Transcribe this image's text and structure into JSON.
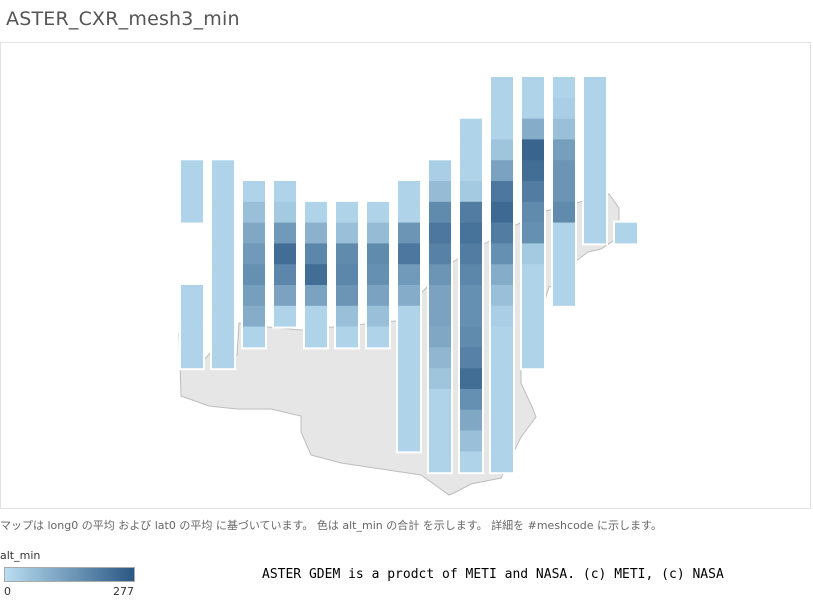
{
  "title": "ASTER_CXR_mesh3_min",
  "caption": "マップは long0 の平均 および lat0 の平均 に基づいています。 色は alt_min の合計 を示します。 詳細を #meshcode に示します。",
  "legend": {
    "title": "alt_min",
    "min_label": "0",
    "max_label": "277"
  },
  "attribution": "ASTER GDEM is a prodct of METI and NASA. (c) METI, (c) NASA",
  "colors": {
    "low": "#b9ddf1",
    "high": "#2a5783",
    "land": "#e6e6e6",
    "coast": "#bdbdbd"
  },
  "chart_data": {
    "type": "heatmap",
    "color_field": "alt_min",
    "color_range": [
      0,
      277
    ],
    "columns": [
      {
        "index": 0,
        "start_row": 4,
        "values": [
          20,
          20,
          20,
          null,
          null,
          null,
          20,
          20,
          20,
          20
        ]
      },
      {
        "index": 1,
        "start_row": 4,
        "values": [
          20,
          20,
          20,
          20,
          20,
          20,
          20,
          20,
          20,
          20
        ]
      },
      {
        "index": 2,
        "start_row": 5,
        "values": [
          20,
          60,
          110,
          140,
          160,
          130,
          100,
          20
        ]
      },
      {
        "index": 3,
        "start_row": 5,
        "values": [
          20,
          40,
          140,
          230,
          180,
          120,
          20
        ]
      },
      {
        "index": 4,
        "start_row": 6,
        "values": [
          20,
          90,
          180,
          230,
          120,
          20,
          20
        ]
      },
      {
        "index": 5,
        "start_row": 6,
        "values": [
          20,
          60,
          170,
          180,
          150,
          60,
          20
        ]
      },
      {
        "index": 6,
        "start_row": 6,
        "values": [
          20,
          70,
          170,
          160,
          120,
          60,
          20
        ]
      },
      {
        "index": 7,
        "start_row": 5,
        "values": [
          20,
          20,
          150,
          210,
          140,
          100,
          20,
          20,
          20,
          20,
          20,
          20,
          20
        ]
      },
      {
        "index": 8,
        "start_row": 4,
        "values": [
          30,
          70,
          170,
          210,
          190,
          150,
          120,
          120,
          110,
          80,
          50,
          20,
          20,
          20,
          20
        ]
      },
      {
        "index": 9,
        "start_row": 2,
        "values": [
          20,
          20,
          20,
          40,
          200,
          220,
          200,
          180,
          160,
          160,
          170,
          190,
          230,
          160,
          110,
          60,
          20
        ]
      },
      {
        "index": 10,
        "start_row": 0,
        "values": [
          20,
          20,
          20,
          50,
          120,
          210,
          240,
          200,
          160,
          100,
          60,
          30,
          20,
          20,
          20,
          20,
          20,
          20,
          20
        ]
      },
      {
        "index": 11,
        "start_row": 0,
        "values": [
          20,
          20,
          100,
          250,
          230,
          200,
          170,
          160,
          40,
          20,
          20,
          20,
          20,
          20
        ]
      },
      {
        "index": 12,
        "start_row": 0,
        "values": [
          20,
          30,
          60,
          130,
          150,
          150,
          170,
          20,
          20,
          20,
          20
        ]
      },
      {
        "index": 13,
        "start_row": 0,
        "values": [
          20,
          20,
          20,
          20,
          20,
          20,
          20,
          20
        ]
      },
      {
        "index": 14,
        "start_row": 7,
        "values": [
          20
        ]
      }
    ]
  }
}
